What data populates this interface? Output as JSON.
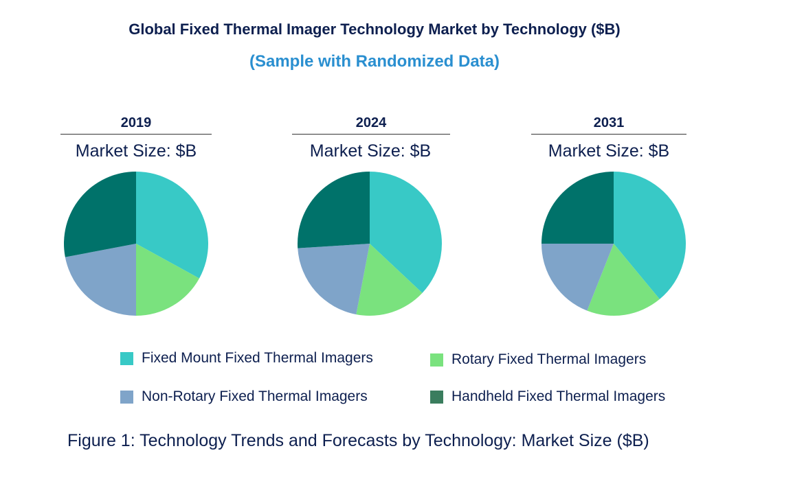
{
  "title": "Global Fixed Thermal Imager Technology Market by Technology ($B)",
  "subtitle": "(Sample with Randomized Data)",
  "caption": "Figure 1: Technology Trends and Forecasts by Technology: Market Size ($B)",
  "chart_data": {
    "type": "pie",
    "legend_placement": "bottom",
    "categories": [
      "Fixed Mount Fixed Thermal Imagers",
      "Rotary Fixed Thermal Imagers",
      "Non-Rotary Fixed Thermal Imagers",
      "Handheld Fixed Thermal Imagers"
    ],
    "colors": [
      "#38c9c6",
      "#7ae27e",
      "#7fa4c9",
      "#00726a"
    ],
    "legend_colors": [
      "#38c9c6",
      "#7ae27e",
      "#7fa4c9",
      "#3a7d5e"
    ],
    "pies": [
      {
        "label": "2019",
        "subtitle": "Market Size: $B",
        "values": [
          33,
          17,
          22,
          28
        ]
      },
      {
        "label": "2024",
        "subtitle": "Market Size: $B",
        "values": [
          37,
          16,
          21,
          26
        ]
      },
      {
        "label": "2031",
        "subtitle": "Market Size: $B",
        "values": [
          39,
          17,
          19,
          25
        ]
      }
    ]
  }
}
